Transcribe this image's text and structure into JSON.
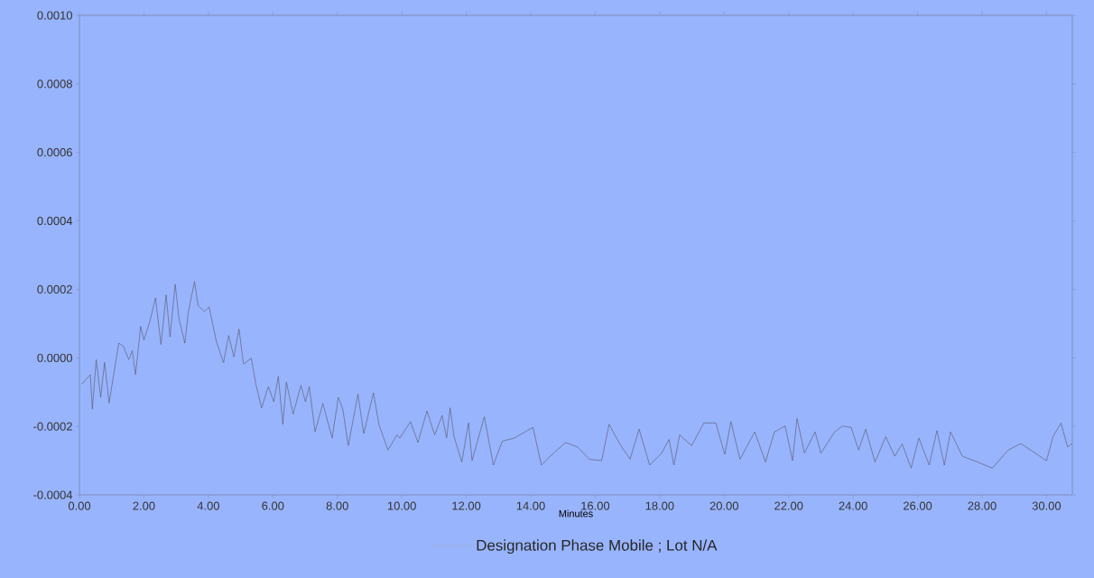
{
  "chart_data": {
    "type": "line",
    "xlabel": "Minutes",
    "legend": "bottom",
    "xlim": [
      0,
      30.8
    ],
    "ylim": [
      -0.0004,
      0.001
    ],
    "xticks": [
      {
        "value": 0,
        "label": "0.00"
      },
      {
        "value": 2,
        "label": "2.00"
      },
      {
        "value": 4,
        "label": "4.00"
      },
      {
        "value": 6,
        "label": "6.00"
      },
      {
        "value": 8,
        "label": "8.00"
      },
      {
        "value": 10,
        "label": "10.00"
      },
      {
        "value": 12,
        "label": "12.00"
      },
      {
        "value": 14,
        "label": "14.00"
      },
      {
        "value": 16,
        "label": "16.00"
      },
      {
        "value": 18,
        "label": "18.00"
      },
      {
        "value": 20,
        "label": "20.00"
      },
      {
        "value": 22,
        "label": "22.00"
      },
      {
        "value": 24,
        "label": "24.00"
      },
      {
        "value": 26,
        "label": "26.00"
      },
      {
        "value": 28,
        "label": "28.00"
      },
      {
        "value": 30,
        "label": "30.00"
      }
    ],
    "yticks": [
      {
        "value": -0.0004,
        "label": "-0.0004"
      },
      {
        "value": -0.0002,
        "label": "-0.0002"
      },
      {
        "value": 0,
        "label": "0.0000"
      },
      {
        "value": 0.0002,
        "label": "0.0002"
      },
      {
        "value": 0.0004,
        "label": "0.0004"
      },
      {
        "value": 0.0006,
        "label": "0.0006"
      },
      {
        "value": 0.0008,
        "label": "0.0008"
      },
      {
        "value": 0.001,
        "label": "0.0010"
      }
    ],
    "series": [
      {
        "name": "Designation Phase Mobile ; Lot N/A",
        "color": "#555566",
        "x": [
          0.08,
          0.34,
          0.4,
          0.52,
          0.66,
          0.78,
          0.92,
          1.22,
          1.36,
          1.53,
          1.64,
          1.74,
          1.9,
          2.0,
          2.18,
          2.36,
          2.53,
          2.69,
          2.81,
          2.97,
          3.09,
          3.27,
          3.38,
          3.57,
          3.68,
          3.88,
          4.02,
          4.25,
          4.47,
          4.63,
          4.79,
          4.95,
          5.09,
          5.33,
          5.47,
          5.65,
          5.86,
          6.03,
          6.17,
          6.31,
          6.42,
          6.63,
          6.87,
          7.01,
          7.13,
          7.31,
          7.55,
          7.84,
          8.03,
          8.17,
          8.34,
          8.64,
          8.82,
          9.12,
          9.29,
          9.57,
          9.85,
          9.94,
          10.27,
          10.5,
          10.78,
          11.02,
          11.25,
          11.39,
          11.5,
          11.62,
          11.86,
          12.07,
          12.18,
          12.56,
          12.84,
          13.12,
          13.49,
          14.07,
          14.33,
          14.56,
          15.08,
          15.45,
          15.82,
          16.2,
          16.43,
          16.76,
          17.08,
          17.36,
          17.69,
          18.06,
          18.29,
          18.44,
          18.62,
          18.99,
          19.37,
          19.74,
          20.02,
          20.21,
          20.49,
          20.95,
          21.28,
          21.56,
          21.89,
          22.12,
          22.26,
          22.49,
          22.82,
          23.0,
          23.43,
          23.66,
          23.94,
          24.17,
          24.39,
          24.68,
          25.01,
          25.29,
          25.52,
          25.8,
          26.04,
          26.36,
          26.6,
          26.83,
          27.02,
          27.39,
          27.86,
          28.32,
          28.8,
          29.2,
          29.6,
          30.0,
          30.2,
          30.45,
          30.65,
          30.8
        ],
        "values": [
          -7.6e-05,
          -4.9e-05,
          -0.00015,
          -5e-06,
          -0.000115,
          -1.3e-05,
          -0.000132,
          4.3e-05,
          3.4e-05,
          -5e-06,
          2.1e-05,
          -4.9e-05,
          9.2e-05,
          5.2e-05,
          0.000105,
          0.000175,
          3.9e-05,
          0.000184,
          6.1e-05,
          0.000215,
          0.000113,
          4.3e-05,
          0.000135,
          0.000223,
          0.000153,
          0.000135,
          0.000149,
          4.7e-05,
          -1.4e-05,
          6.5e-05,
          3e-06,
          8.4e-05,
          -1.8e-05,
          -1e-06,
          -7.6e-05,
          -0.000146,
          -8.4e-05,
          -0.000128,
          -5.4e-05,
          -0.000194,
          -7.1e-05,
          -0.000164,
          -8e-05,
          -0.000128,
          -8.4e-05,
          -0.000216,
          -0.000133,
          -0.000234,
          -0.000115,
          -0.00015,
          -0.000256,
          -0.000106,
          -0.000221,
          -0.000102,
          -0.000194,
          -0.000269,
          -0.000225,
          -0.000234,
          -0.000186,
          -0.000247,
          -0.000155,
          -0.000225,
          -0.000168,
          -0.000234,
          -0.000146,
          -0.00023,
          -0.000304,
          -0.00019,
          -0.0003,
          -0.000172,
          -0.000313,
          -0.000243,
          -0.000234,
          -0.000203,
          -0.000313,
          -0.000291,
          -0.000247,
          -0.00026,
          -0.000296,
          -0.0003,
          -0.000194,
          -0.000251,
          -0.000296,
          -0.000208,
          -0.000313,
          -0.000278,
          -0.000238,
          -0.000313,
          -0.000225,
          -0.000256,
          -0.00019,
          -0.00019,
          -0.000282,
          -0.000186,
          -0.000296,
          -0.000216,
          -0.000304,
          -0.000216,
          -0.000199,
          -0.0003,
          -0.000177,
          -0.000278,
          -0.000216,
          -0.000278,
          -0.000216,
          -0.000199,
          -0.000203,
          -0.000269,
          -0.000208,
          -0.000304,
          -0.00023,
          -0.000287,
          -0.000251,
          -0.000322,
          -0.000234,
          -0.000313,
          -0.000212,
          -0.000313,
          -0.000216,
          -0.000287,
          -0.000304,
          -0.000322,
          -0.00027,
          -0.00025,
          -0.000275,
          -0.0003,
          -0.00023,
          -0.00019,
          -0.00026,
          -0.00025
        ]
      }
    ]
  }
}
